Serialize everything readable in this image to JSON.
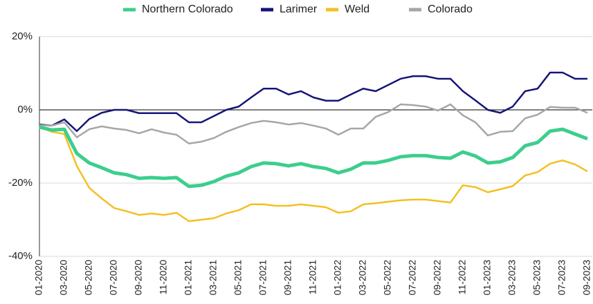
{
  "chart_data": {
    "type": "line",
    "categories": [
      "01-2020",
      null,
      "03-2020",
      null,
      "05-2020",
      null,
      "07-2020",
      null,
      "09-2020",
      null,
      "11-2020",
      null,
      "01-2021",
      null,
      "03-2021",
      null,
      "05-2021",
      null,
      "07-2021",
      null,
      "09-2021",
      null,
      "11-2021",
      null,
      "01-2022",
      null,
      "03-2022",
      null,
      "05-2022",
      null,
      "07-2022",
      null,
      "09-2022",
      null,
      "11-2022",
      null,
      "01-2023",
      null,
      "03-2023",
      null,
      "05-2023",
      null,
      "07-2023",
      null,
      "09-2023"
    ],
    "series": [
      {
        "name": "Northern Colorado",
        "color": "#3cce8d",
        "width": 5,
        "values": [
          -4.7,
          -5.5,
          -5.3,
          -11.9,
          -14.5,
          -15.8,
          -17.2,
          -17.7,
          -18.7,
          -18.5,
          -18.7,
          -18.5,
          -20.9,
          -20.6,
          -19.6,
          -18.1,
          -17.2,
          -15.5,
          -14.5,
          -14.7,
          -15.3,
          -14.7,
          -15.5,
          -16.0,
          -17.2,
          -16.2,
          -14.5,
          -14.5,
          -13.8,
          -12.8,
          -12.5,
          -12.5,
          -13.0,
          -13.2,
          -11.5,
          -12.6,
          -14.5,
          -14.2,
          -13.0,
          -9.8,
          -8.9,
          -5.8,
          -5.3,
          -6.6,
          -7.9
        ]
      },
      {
        "name": "Larimer",
        "color": "#141478",
        "width": 2.5,
        "values": [
          -4.0,
          -4.3,
          -2.6,
          -5.8,
          -2.5,
          -0.8,
          0,
          0,
          -0.9,
          -0.9,
          -0.9,
          -0.9,
          -3.4,
          -3.4,
          -1.7,
          0,
          0.9,
          3.4,
          5.8,
          5.8,
          4.2,
          5.1,
          3.4,
          2.5,
          2.5,
          4.2,
          5.8,
          5.1,
          6.8,
          8.5,
          9.2,
          9.2,
          8.5,
          8.5,
          5.1,
          2.6,
          0,
          -0.8,
          0.9,
          5.1,
          5.8,
          10.2,
          10.2,
          8.5,
          8.5
        ]
      },
      {
        "name": "Weld",
        "color": "#f4bf22",
        "width": 2.5,
        "values": [
          -4.7,
          -6.0,
          -6.6,
          -15.3,
          -21.3,
          -24.2,
          -26.8,
          -27.7,
          -28.7,
          -28.3,
          -28.7,
          -28.1,
          -30.4,
          -30.0,
          -29.6,
          -28.3,
          -27.4,
          -25.8,
          -25.8,
          -26.2,
          -26.2,
          -25.8,
          -26.2,
          -26.6,
          -28.1,
          -27.7,
          -25.8,
          -25.5,
          -25.1,
          -24.7,
          -24.5,
          -24.5,
          -24.9,
          -25.3,
          -20.6,
          -21.1,
          -22.5,
          -21.7,
          -20.8,
          -17.9,
          -17.0,
          -14.7,
          -13.8,
          -14.9,
          -16.8
        ]
      },
      {
        "name": "Colorado",
        "color": "#a6a6a6",
        "width": 2.5,
        "values": [
          -4.2,
          -4.3,
          -3.4,
          -7.5,
          -5.3,
          -4.5,
          -5.1,
          -5.5,
          -6.4,
          -5.3,
          -6.2,
          -6.8,
          -9.2,
          -8.7,
          -7.7,
          -6.0,
          -4.7,
          -3.6,
          -3.0,
          -3.4,
          -4.0,
          -3.6,
          -4.3,
          -5.1,
          -6.8,
          -5.1,
          -5.1,
          -1.9,
          -0.6,
          1.5,
          1.3,
          0.9,
          -0.2,
          1.5,
          -1.5,
          -3.4,
          -7.0,
          -6.0,
          -5.8,
          -2.3,
          -1.3,
          0.8,
          0.6,
          0.6,
          -0.8
        ]
      }
    ],
    "ylim": [
      -40,
      20
    ],
    "yticks": [
      {
        "value": -40,
        "label": "-40%"
      },
      {
        "value": -20,
        "label": "-20%"
      },
      {
        "value": 0,
        "label": "0%"
      },
      {
        "value": 20,
        "label": "20%"
      }
    ],
    "grid": true,
    "legend": "top"
  }
}
